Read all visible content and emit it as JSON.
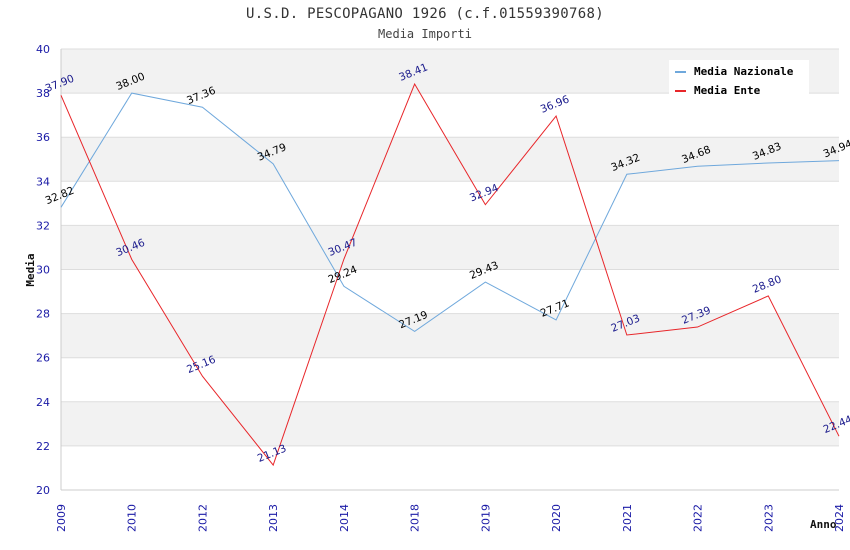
{
  "chart_data": {
    "type": "line",
    "title": "U.S.D. PESCOPAGANO 1926 (c.f.01559390768)",
    "subtitle": "Media Importi",
    "xlabel": "Anno",
    "ylabel": "Media",
    "ylim": [
      20,
      40
    ],
    "ytick_step": 2,
    "grid": true,
    "legend_position": "top-right",
    "categories": [
      "2009",
      "2010",
      "2012",
      "2013",
      "2014",
      "2018",
      "2019",
      "2020",
      "2021",
      "2022",
      "2023",
      "2024"
    ],
    "series": [
      {
        "name": "Media Nazionale",
        "color": "#6fa8dc",
        "label_color": "#000000",
        "values": [
          32.82,
          38.0,
          37.36,
          34.79,
          29.24,
          27.19,
          29.43,
          27.71,
          34.32,
          34.68,
          34.83,
          34.94
        ],
        "labels": [
          "32.82",
          "38.00",
          "37.36",
          "34.79",
          "29.24",
          "27.19",
          "29.43",
          "27.71",
          "34.32",
          "34.68",
          "34.83",
          "34.94"
        ]
      },
      {
        "name": "Media Ente",
        "color": "#e8262a",
        "label_color": "#1a1a8c",
        "values": [
          37.9,
          30.46,
          25.16,
          21.13,
          30.47,
          38.41,
          32.94,
          36.96,
          27.03,
          27.39,
          28.8,
          22.44
        ],
        "labels": [
          "37.90",
          "30.46",
          "25.16",
          "21.13",
          "30.47",
          "38.41",
          "32.94",
          "36.96",
          "27.03",
          "27.39",
          "28.80",
          "22.44"
        ]
      }
    ]
  }
}
